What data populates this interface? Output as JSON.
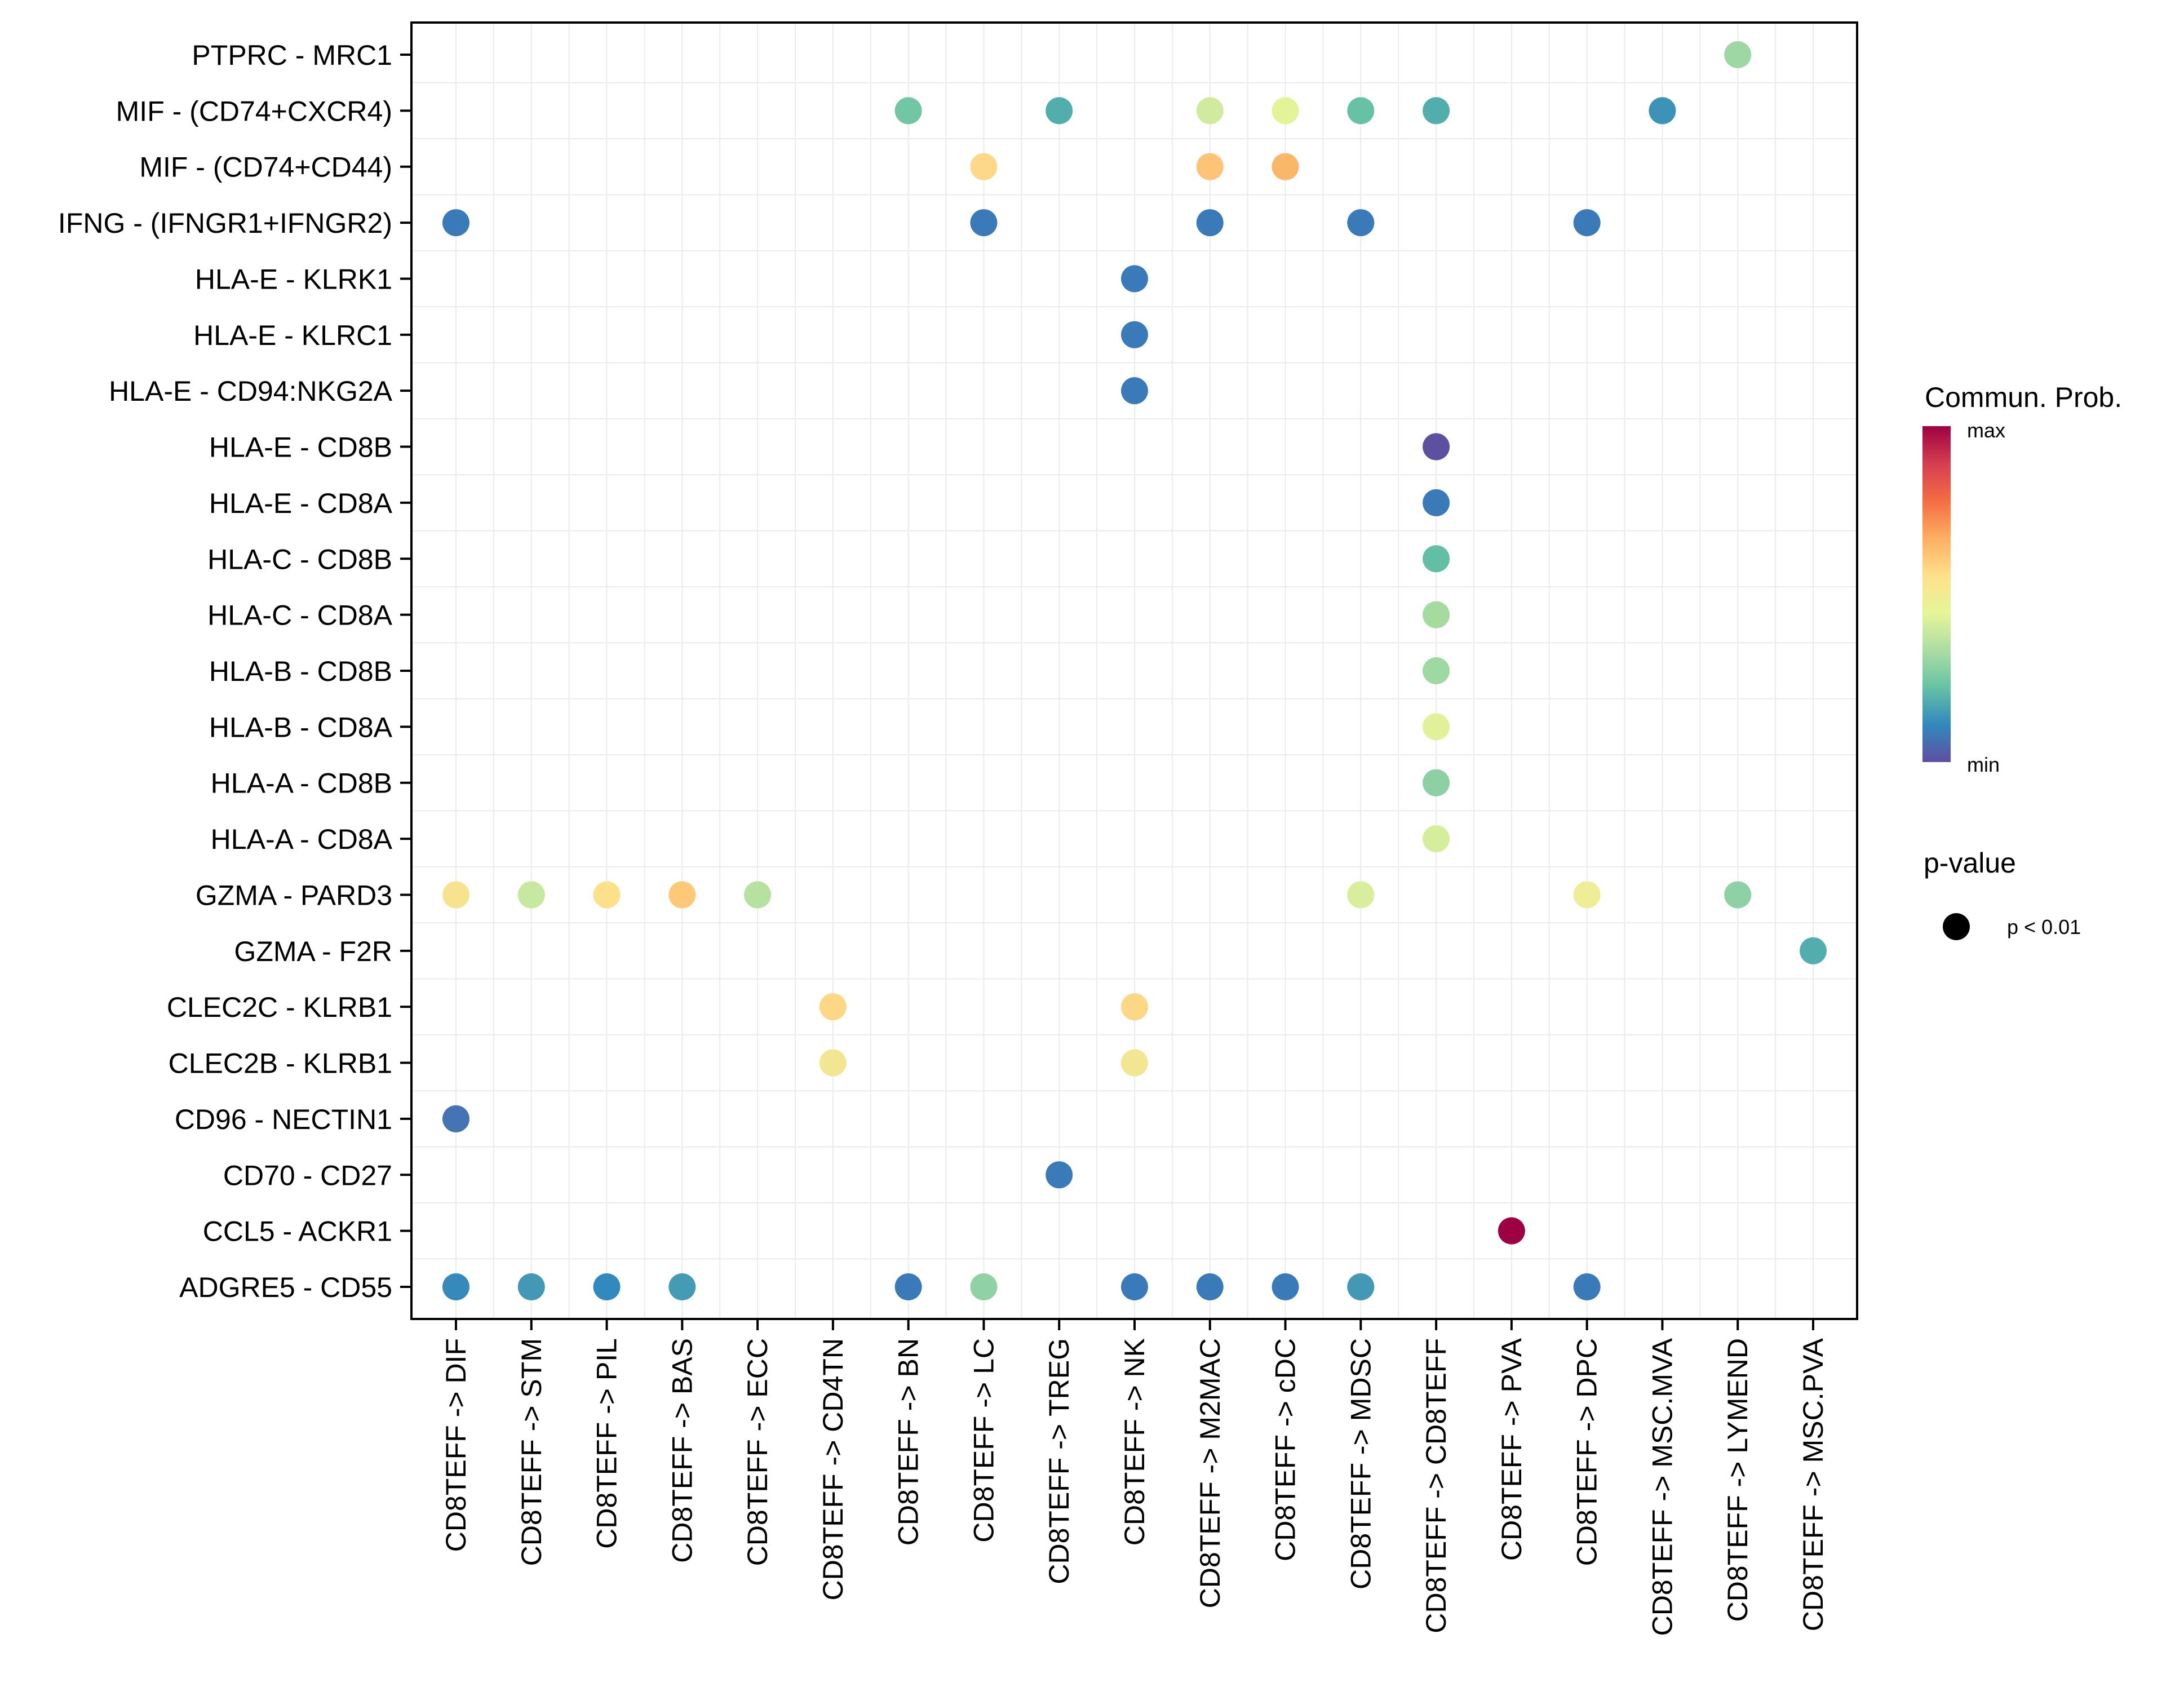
{
  "chart_data": {
    "type": "scatter",
    "subtype": "dot-matrix",
    "title": "",
    "xlabel": "",
    "ylabel": "",
    "grid": true,
    "categories_x": [
      "CD8TEFF -> DIF",
      "CD8TEFF -> STM",
      "CD8TEFF -> PIL",
      "CD8TEFF -> BAS",
      "CD8TEFF -> ECC",
      "CD8TEFF -> CD4TN",
      "CD8TEFF -> BN",
      "CD8TEFF -> LC",
      "CD8TEFF -> TREG",
      "CD8TEFF -> NK",
      "CD8TEFF -> M2MAC",
      "CD8TEFF -> cDC",
      "CD8TEFF -> MDSC",
      "CD8TEFF -> CD8TEFF",
      "CD8TEFF -> PVA",
      "CD8TEFF -> DPC",
      "CD8TEFF -> MSC.MVA",
      "CD8TEFF -> LYMEND",
      "CD8TEFF -> MSC.PVA"
    ],
    "categories_y": [
      "PTPRC - MRC1",
      "MIF - (CD74+CXCR4)",
      "MIF - (CD74+CD44)",
      "IFNG - (IFNGR1+IFNGR2)",
      "HLA-E - KLRK1",
      "HLA-E - KLRC1",
      "HLA-E - CD94:NKG2A",
      "HLA-E - CD8B",
      "HLA-E - CD8A",
      "HLA-C - CD8B",
      "HLA-C - CD8A",
      "HLA-B - CD8B",
      "HLA-B - CD8A",
      "HLA-A - CD8B",
      "HLA-A - CD8A",
      "GZMA - PARD3",
      "GZMA - F2R",
      "CLEC2C - KLRB1",
      "CLEC2B - KLRB1",
      "CD96 - NECTIN1",
      "CD70 - CD27",
      "CCL5 - ACKR1",
      "ADGRE5 - CD55"
    ],
    "points": [
      {
        "y": "PTPRC - MRC1",
        "x": "CD8TEFF -> LYMEND",
        "color": "#9ED6A4",
        "prob_rel": 0.4
      },
      {
        "y": "MIF - (CD74+CXCR4)",
        "x": "CD8TEFF -> BN",
        "color": "#71C6A4",
        "prob_rel": 0.3
      },
      {
        "y": "MIF - (CD74+CXCR4)",
        "x": "CD8TEFF -> TREG",
        "color": "#52ADAD",
        "prob_rel": 0.22
      },
      {
        "y": "MIF - (CD74+CXCR4)",
        "x": "CD8TEFF -> M2MAC",
        "color": "#D0EB9E",
        "prob_rel": 0.46
      },
      {
        "y": "MIF - (CD74+CXCR4)",
        "x": "CD8TEFF -> cDC",
        "color": "#E3F398",
        "prob_rel": 0.5
      },
      {
        "y": "MIF - (CD74+CXCR4)",
        "x": "CD8TEFF -> MDSC",
        "color": "#66C1A5",
        "prob_rel": 0.28
      },
      {
        "y": "MIF - (CD74+CXCR4)",
        "x": "CD8TEFF -> CD8TEFF",
        "color": "#52ADAD",
        "prob_rel": 0.22
      },
      {
        "y": "MIF - (CD74+CXCR4)",
        "x": "CD8TEFF -> MSC.MVA",
        "color": "#3D92B8",
        "prob_rel": 0.14
      },
      {
        "y": "MIF - (CD74+CD44)",
        "x": "CD8TEFF -> LC",
        "color": "#FDD888",
        "prob_rel": 0.6
      },
      {
        "y": "MIF - (CD74+CD44)",
        "x": "CD8TEFF -> M2MAC",
        "color": "#FDC377",
        "prob_rel": 0.65
      },
      {
        "y": "MIF - (CD74+CD44)",
        "x": "CD8TEFF -> cDC",
        "color": "#FBB769",
        "prob_rel": 0.68
      },
      {
        "y": "IFNG - (IFNGR1+IFNGR2)",
        "x": "CD8TEFF -> DIF",
        "color": "#3A7AB8",
        "prob_rel": 0.08
      },
      {
        "y": "IFNG - (IFNGR1+IFNGR2)",
        "x": "CD8TEFF -> LC",
        "color": "#3A7AB8",
        "prob_rel": 0.08
      },
      {
        "y": "IFNG - (IFNGR1+IFNGR2)",
        "x": "CD8TEFF -> M2MAC",
        "color": "#3A7AB8",
        "prob_rel": 0.08
      },
      {
        "y": "IFNG - (IFNGR1+IFNGR2)",
        "x": "CD8TEFF -> MDSC",
        "color": "#3A7AB8",
        "prob_rel": 0.08
      },
      {
        "y": "IFNG - (IFNGR1+IFNGR2)",
        "x": "CD8TEFF -> DPC",
        "color": "#3A7AB8",
        "prob_rel": 0.08
      },
      {
        "y": "HLA-E - KLRK1",
        "x": "CD8TEFF -> NK",
        "color": "#3A7AB8",
        "prob_rel": 0.08
      },
      {
        "y": "HLA-E - KLRC1",
        "x": "CD8TEFF -> NK",
        "color": "#3A7AB8",
        "prob_rel": 0.08
      },
      {
        "y": "HLA-E - CD94:NKG2A",
        "x": "CD8TEFF -> NK",
        "color": "#3A7AB8",
        "prob_rel": 0.08
      },
      {
        "y": "HLA-E - CD8B",
        "x": "CD8TEFF -> CD8TEFF",
        "color": "#5E50A0",
        "prob_rel": 0.0
      },
      {
        "y": "HLA-E - CD8A",
        "x": "CD8TEFF -> CD8TEFF",
        "color": "#3A7AB8",
        "prob_rel": 0.08
      },
      {
        "y": "HLA-C - CD8B",
        "x": "CD8TEFF -> CD8TEFF",
        "color": "#62BFA6",
        "prob_rel": 0.27
      },
      {
        "y": "HLA-C - CD8A",
        "x": "CD8TEFF -> CD8TEFF",
        "color": "#A6DBA0",
        "prob_rel": 0.4
      },
      {
        "y": "HLA-B - CD8B",
        "x": "CD8TEFF -> CD8TEFF",
        "color": "#9ED8A3",
        "prob_rel": 0.38
      },
      {
        "y": "HLA-B - CD8A",
        "x": "CD8TEFF -> CD8TEFF",
        "color": "#E0F19A",
        "prob_rel": 0.49
      },
      {
        "y": "HLA-A - CD8B",
        "x": "CD8TEFF -> CD8TEFF",
        "color": "#8DD0A4",
        "prob_rel": 0.35
      },
      {
        "y": "HLA-A - CD8A",
        "x": "CD8TEFF -> CD8TEFF",
        "color": "#D5EE9B",
        "prob_rel": 0.47
      },
      {
        "y": "GZMA - PARD3",
        "x": "CD8TEFF -> DIF",
        "color": "#F7E38F",
        "prob_rel": 0.56
      },
      {
        "y": "GZMA - PARD3",
        "x": "CD8TEFF -> STM",
        "color": "#C6E89F",
        "prob_rel": 0.44
      },
      {
        "y": "GZMA - PARD3",
        "x": "CD8TEFF -> PIL",
        "color": "#FCE08A",
        "prob_rel": 0.58
      },
      {
        "y": "GZMA - PARD3",
        "x": "CD8TEFF -> BAS",
        "color": "#FDC877",
        "prob_rel": 0.64
      },
      {
        "y": "GZMA - PARD3",
        "x": "CD8TEFF -> ECC",
        "color": "#B6E1A0",
        "prob_rel": 0.42
      },
      {
        "y": "GZMA - PARD3",
        "x": "CD8TEFF -> MDSC",
        "color": "#D8EE9C",
        "prob_rel": 0.47
      },
      {
        "y": "GZMA - PARD3",
        "x": "CD8TEFF -> DPC",
        "color": "#EFEE96",
        "prob_rel": 0.52
      },
      {
        "y": "GZMA - PARD3",
        "x": "CD8TEFF -> LYMEND",
        "color": "#8ED1A4",
        "prob_rel": 0.35
      },
      {
        "y": "GZMA - F2R",
        "x": "CD8TEFF -> MSC.PVA",
        "color": "#53ADAD",
        "prob_rel": 0.22
      },
      {
        "y": "CLEC2C - KLRB1",
        "x": "CD8TEFF -> CD4TN",
        "color": "#FCD886",
        "prob_rel": 0.6
      },
      {
        "y": "CLEC2C - KLRB1",
        "x": "CD8TEFF -> NK",
        "color": "#FCD886",
        "prob_rel": 0.6
      },
      {
        "y": "CLEC2B - KLRB1",
        "x": "CD8TEFF -> CD4TN",
        "color": "#F2E692",
        "prob_rel": 0.54
      },
      {
        "y": "CLEC2B - KLRB1",
        "x": "CD8TEFF -> NK",
        "color": "#F2E692",
        "prob_rel": 0.54
      },
      {
        "y": "CD96 - NECTIN1",
        "x": "CD8TEFF -> DIF",
        "color": "#4574B5",
        "prob_rel": 0.05
      },
      {
        "y": "CD70 - CD27",
        "x": "CD8TEFF -> TREG",
        "color": "#3A7AB8",
        "prob_rel": 0.08
      },
      {
        "y": "CCL5 - ACKR1",
        "x": "CD8TEFF -> PVA",
        "color": "#9E0142",
        "prob_rel": 1.0
      },
      {
        "y": "ADGRE5 - CD55",
        "x": "CD8TEFF -> DIF",
        "color": "#3689BB",
        "prob_rel": 0.12
      },
      {
        "y": "ADGRE5 - CD55",
        "x": "CD8TEFF -> STM",
        "color": "#4298B5",
        "prob_rel": 0.16
      },
      {
        "y": "ADGRE5 - CD55",
        "x": "CD8TEFF -> PIL",
        "color": "#3289BE",
        "prob_rel": 0.12
      },
      {
        "y": "ADGRE5 - CD55",
        "x": "CD8TEFF -> BAS",
        "color": "#449BB3",
        "prob_rel": 0.17
      },
      {
        "y": "ADGRE5 - CD55",
        "x": "CD8TEFF -> BN",
        "color": "#3A7AB8",
        "prob_rel": 0.08
      },
      {
        "y": "ADGRE5 - CD55",
        "x": "CD8TEFF -> LC",
        "color": "#91D2A4",
        "prob_rel": 0.36
      },
      {
        "y": "ADGRE5 - CD55",
        "x": "CD8TEFF -> NK",
        "color": "#3A7AB8",
        "prob_rel": 0.08
      },
      {
        "y": "ADGRE5 - CD55",
        "x": "CD8TEFF -> M2MAC",
        "color": "#3A7AB8",
        "prob_rel": 0.08
      },
      {
        "y": "ADGRE5 - CD55",
        "x": "CD8TEFF -> cDC",
        "color": "#3A7AB8",
        "prob_rel": 0.08
      },
      {
        "y": "ADGRE5 - CD55",
        "x": "CD8TEFF -> MDSC",
        "color": "#4298B5",
        "prob_rel": 0.16
      },
      {
        "y": "ADGRE5 - CD55",
        "x": "CD8TEFF -> DPC",
        "color": "#3A7AB8",
        "prob_rel": 0.08
      }
    ],
    "legend": {
      "placement": "right",
      "color_title": "Commun. Prob.",
      "color_max_label": "max",
      "color_min_label": "min",
      "color_scale": [
        "#5E4FA2",
        "#3288BD",
        "#66C2A5",
        "#ABDDA4",
        "#E6F598",
        "#FEE08B",
        "#FDAE61",
        "#F46D43",
        "#D53E4F",
        "#9E0142"
      ],
      "size_title": "p-value",
      "size_entries": [
        {
          "label": "p < 0.01",
          "color": "#000000"
        }
      ]
    }
  }
}
